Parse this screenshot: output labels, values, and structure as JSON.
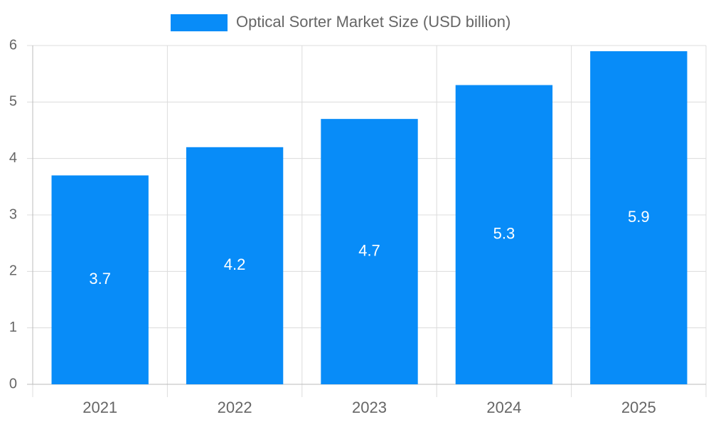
{
  "chart_data": {
    "type": "bar",
    "categories": [
      "2021",
      "2022",
      "2023",
      "2024",
      "2025"
    ],
    "series": [
      {
        "name": "Optical Sorter Market Size (USD billion)",
        "color": "#088cf8",
        "values": [
          3.7,
          4.2,
          4.7,
          5.3,
          5.9
        ]
      }
    ],
    "ylim": [
      0,
      6
    ],
    "yticks": [
      0,
      1,
      2,
      3,
      4,
      5,
      6
    ],
    "grid": true,
    "legend": "top"
  }
}
